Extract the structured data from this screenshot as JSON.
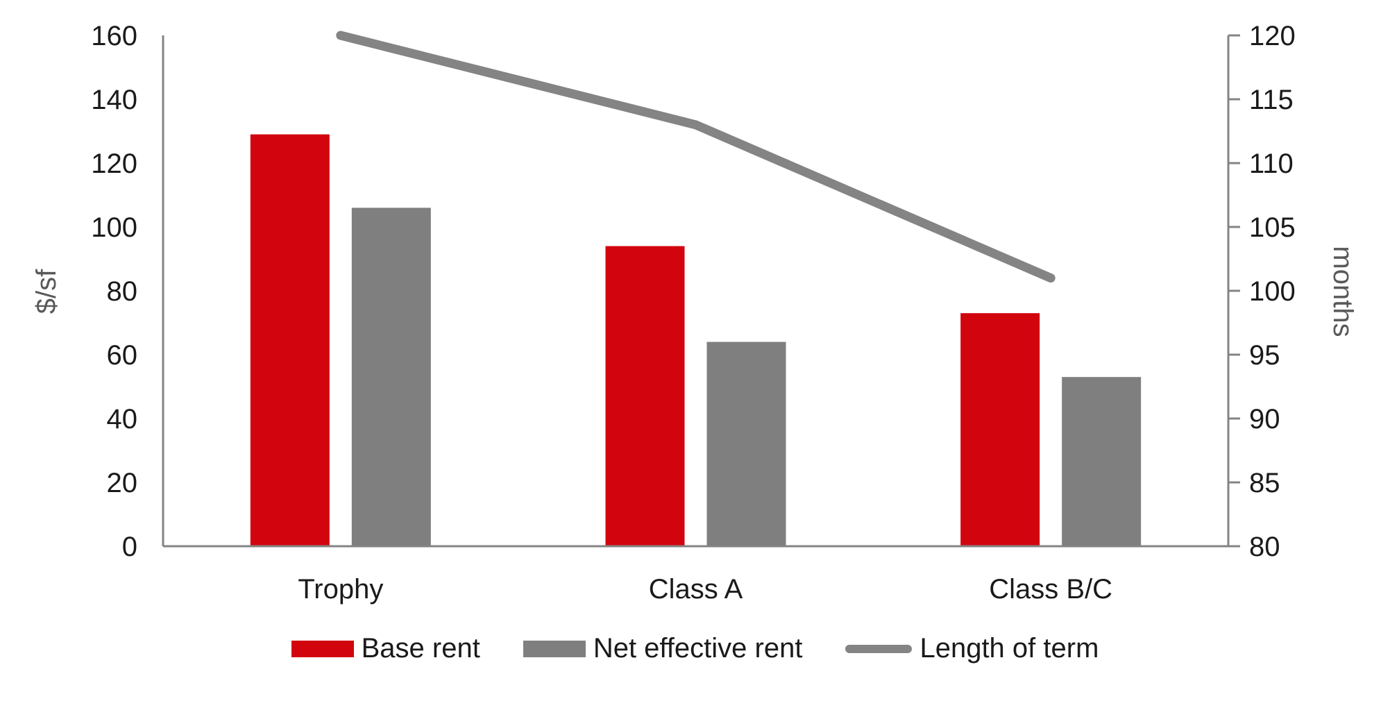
{
  "chart_data": {
    "type": "combo",
    "title": "",
    "categories": [
      "Trophy",
      "Class A",
      "Class B/C"
    ],
    "series": [
      {
        "name": "Base rent",
        "type": "bar",
        "axis": "left",
        "color": "#d2050f",
        "values": [
          129,
          94,
          73
        ]
      },
      {
        "name": "Net effective rent",
        "type": "bar",
        "axis": "left",
        "color": "#7f7f7f",
        "values": [
          106,
          64,
          53
        ]
      },
      {
        "name": "Length of term",
        "type": "line",
        "axis": "right",
        "color": "#848484",
        "values": [
          120,
          113,
          101
        ]
      }
    ],
    "left_axis": {
      "label": "$/sf",
      "min": 0,
      "max": 160,
      "step": 20,
      "ticks": [
        0,
        20,
        40,
        60,
        80,
        100,
        120,
        140,
        160
      ]
    },
    "right_axis": {
      "label": "months",
      "min": 80,
      "max": 120,
      "step": 5,
      "ticks": [
        80,
        85,
        90,
        95,
        100,
        105,
        110,
        115,
        120
      ]
    },
    "grid": false,
    "legend_position": "bottom",
    "background_color": "#ffffff",
    "axis_color": "#848484",
    "tick_label_color": "#1a1a1a",
    "axis_title_color": "#595959"
  }
}
